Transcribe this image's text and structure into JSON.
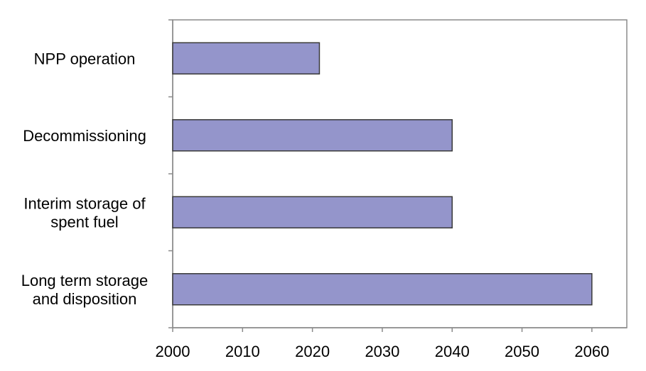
{
  "chart_data": {
    "type": "bar",
    "orientation": "horizontal",
    "title": "",
    "xlabel": "",
    "ylabel": "",
    "categories": [
      [
        "NPP operation"
      ],
      [
        "Decommissioning"
      ],
      [
        "Interim storage of",
        "spent fuel"
      ],
      [
        "Long term storage",
        "and disposition"
      ]
    ],
    "values": [
      2021,
      2040,
      2040,
      2060
    ],
    "xlim": [
      2000,
      2065
    ],
    "xticks": [
      "2000",
      "2010",
      "2020",
      "2030",
      "2040",
      "2050",
      "2060"
    ],
    "grid": false,
    "legend": "none",
    "colors": {
      "bar_fill": "#9495cb",
      "bar_stroke": "#3a3a3a",
      "axis": "#8a8a8a",
      "frame": "#8a8a8a"
    }
  }
}
